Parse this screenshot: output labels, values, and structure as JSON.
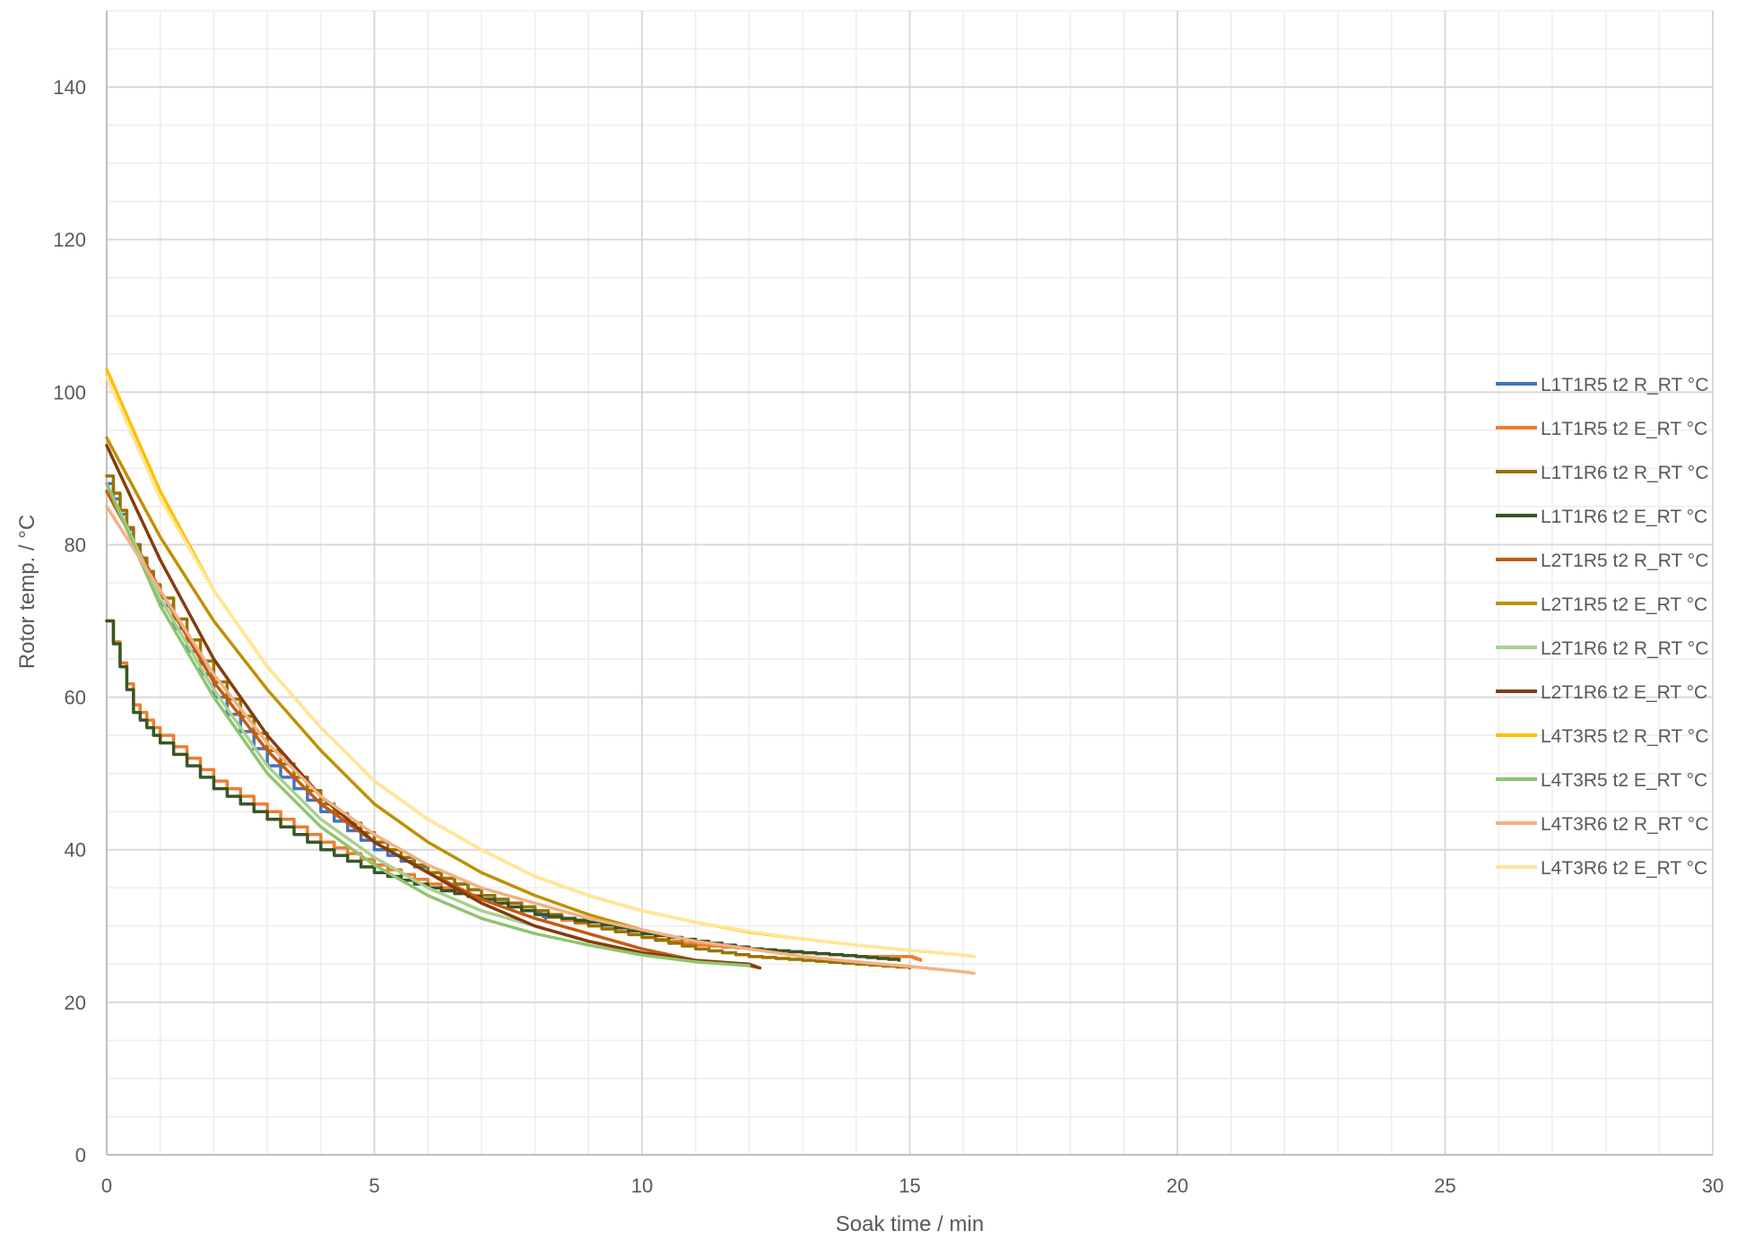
{
  "chart_data": {
    "type": "line",
    "xlabel": "Soak time / min",
    "ylabel": "Rotor temp. / °C",
    "xlim": [
      0,
      30
    ],
    "ylim": [
      0,
      150
    ],
    "x_ticks": [
      0,
      5,
      10,
      15,
      20,
      25,
      30
    ],
    "y_ticks": [
      0,
      20,
      40,
      60,
      80,
      100,
      120,
      140
    ],
    "x_minor_step": 1,
    "y_minor_step": 5,
    "grid": true,
    "legend_position": "right",
    "series": [
      {
        "name": "L1T1R5 t2 R_RT °C",
        "color": "#4472C4",
        "step": true,
        "x": [
          0,
          0.5,
          1,
          2,
          3,
          4,
          5,
          6,
          7,
          8,
          8.2
        ],
        "y": [
          88,
          80,
          72,
          60,
          51,
          45,
          40,
          37,
          34,
          32,
          31
        ]
      },
      {
        "name": "L1T1R5 t2 E_RT °C",
        "color": "#ED7D31",
        "step": true,
        "x": [
          0,
          0.5,
          1,
          2,
          3,
          4,
          5,
          6,
          7,
          8,
          9,
          10,
          11,
          12,
          13,
          14,
          15,
          15.2
        ],
        "y": [
          70,
          59,
          55,
          49,
          45,
          41,
          38,
          35.5,
          33.5,
          31.5,
          30,
          28.5,
          27.5,
          27,
          26.5,
          26,
          26,
          25.5
        ]
      },
      {
        "name": "L1T1R6 t2 R_RT °C",
        "color": "#997300",
        "step": true,
        "x": [
          0,
          0.5,
          1,
          2,
          3,
          4,
          5,
          6,
          7,
          8,
          9,
          10,
          11,
          12,
          13,
          14,
          15
        ],
        "y": [
          89,
          80,
          73,
          62,
          53,
          46,
          41,
          37,
          34,
          32,
          30,
          28.5,
          27,
          26,
          25.5,
          25,
          24.5
        ]
      },
      {
        "name": "L1T1R6 t2 E_RT °C",
        "color": "#375623",
        "step": true,
        "x": [
          0,
          0.5,
          1,
          2,
          3,
          4,
          5,
          6,
          7,
          8,
          9,
          10,
          11,
          12,
          13,
          14,
          14.8
        ],
        "y": [
          70,
          58,
          54,
          48,
          44,
          40,
          37,
          35,
          33.5,
          31.5,
          30.5,
          29,
          28,
          27,
          26.5,
          26,
          25.5
        ]
      },
      {
        "name": "L2T1R5 t2 R_RT °C",
        "color": "#C55A11",
        "step": false,
        "x": [
          0,
          1,
          2,
          3,
          4,
          5,
          6,
          7,
          8,
          9,
          10,
          11,
          12,
          12.2
        ],
        "y": [
          87,
          74,
          62,
          53,
          46,
          41,
          37,
          33.5,
          31,
          29,
          27,
          25.5,
          24.8,
          24.5
        ]
      },
      {
        "name": "L2T1R5 t2 E_RT °C",
        "color": "#BF9000",
        "step": false,
        "x": [
          0,
          1,
          2,
          3,
          4,
          5,
          6,
          7,
          8,
          9,
          10,
          11,
          12
        ],
        "y": [
          94,
          81,
          70,
          61,
          53,
          46,
          41,
          37,
          34,
          31.5,
          29.5,
          28,
          27
        ]
      },
      {
        "name": "L2T1R6 t2 R_RT °C",
        "color": "#A9D18E",
        "step": false,
        "x": [
          0,
          1,
          2,
          3,
          4,
          5,
          6,
          7,
          8,
          9,
          10,
          11,
          12
        ],
        "y": [
          88,
          73,
          61,
          51,
          44,
          39,
          35,
          32,
          30,
          28,
          26.5,
          25.5,
          25
        ]
      },
      {
        "name": "L2T1R6 t2 E_RT °C",
        "color": "#843C0C",
        "step": false,
        "x": [
          0,
          1,
          2,
          3,
          4,
          5,
          6,
          7,
          8,
          9,
          10,
          11,
          12,
          12.2
        ],
        "y": [
          93,
          78,
          65,
          55,
          47,
          41,
          37,
          33,
          30,
          28,
          26.5,
          25.5,
          25,
          24.5
        ]
      },
      {
        "name": "L4T3R5 t2 R_RT °C",
        "color": "#FFC000",
        "step": false,
        "x": [
          0,
          1,
          2,
          3,
          4,
          5,
          6,
          7,
          8,
          9,
          10,
          11,
          12,
          13,
          14,
          15,
          16,
          16.2
        ],
        "y": [
          103,
          87,
          74,
          64,
          56,
          49,
          44,
          40,
          36.5,
          34,
          32,
          30.5,
          29.2,
          28.3,
          27.5,
          26.8,
          26.2,
          26
        ]
      },
      {
        "name": "L4T3R5 t2 E_RT °C",
        "color": "#8FC46F",
        "step": false,
        "x": [
          0,
          1,
          2,
          3,
          4,
          5,
          6,
          7,
          8,
          9,
          10,
          11,
          12
        ],
        "y": [
          88,
          72,
          60,
          50,
          43,
          38,
          34,
          31,
          29,
          27.5,
          26.2,
          25.3,
          24.8
        ]
      },
      {
        "name": "L4T3R6 t2 R_RT °C",
        "color": "#F4B183",
        "step": false,
        "x": [
          0,
          1,
          2,
          3,
          4,
          5,
          6,
          7,
          8,
          9,
          10,
          11,
          12,
          13,
          14,
          15,
          16,
          16.2
        ],
        "y": [
          85,
          74,
          63,
          54,
          47,
          42,
          38,
          35,
          33,
          31,
          29.5,
          28,
          27,
          26,
          25.3,
          24.7,
          24,
          23.8
        ]
      },
      {
        "name": "L4T3R6 t2 E_RT °C",
        "color": "#FFE699",
        "step": false,
        "x": [
          0,
          1,
          2,
          3,
          4,
          5,
          6,
          7,
          8,
          9,
          10,
          11,
          12,
          13,
          14,
          15,
          16,
          16.2
        ],
        "y": [
          102,
          86,
          74,
          64,
          56,
          49,
          44,
          40,
          36.5,
          34,
          32,
          30.5,
          29.3,
          28.3,
          27.5,
          26.8,
          26.2,
          26
        ]
      }
    ]
  }
}
